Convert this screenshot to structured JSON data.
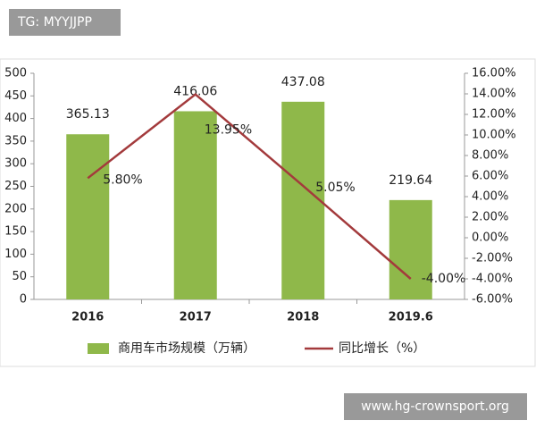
{
  "chart_data": {
    "type": "bar-line",
    "categories": [
      "2016",
      "2017",
      "2018",
      "2019.6"
    ],
    "series": [
      {
        "name": "商用车市场规模（万辆）",
        "type": "bar",
        "color": "#8fb84a",
        "values": [
          365.13,
          416.06,
          437.08,
          219.64
        ]
      },
      {
        "name": "同比增长（%）",
        "type": "line",
        "axis": "y2",
        "color": "#a33a3c",
        "values": [
          5.8,
          13.95,
          5.05,
          -4.0
        ],
        "value_labels": [
          "5.80%",
          "13.95%",
          "5.05%",
          "-4.00%"
        ]
      }
    ],
    "ylim": [
      0,
      500
    ],
    "yticks": [
      0,
      50,
      100,
      150,
      200,
      250,
      300,
      350,
      400,
      450,
      500
    ],
    "y2lim": [
      -6,
      16
    ],
    "y2ticks": [
      {
        "value": -6,
        "label": "-6.00%"
      },
      {
        "value": -4,
        "label": "-4.00%"
      },
      {
        "value": -2,
        "label": "-2.00%"
      },
      {
        "value": 0,
        "label": "0.00%"
      },
      {
        "value": 2,
        "label": "2.00%"
      },
      {
        "value": 4,
        "label": "4.00%"
      },
      {
        "value": 6,
        "label": "6.00%"
      },
      {
        "value": 8,
        "label": "8.00%"
      },
      {
        "value": 10,
        "label": "10.00%"
      },
      {
        "value": 12,
        "label": "12.00%"
      },
      {
        "value": 14,
        "label": "14.00%"
      },
      {
        "value": 16,
        "label": "16.00%"
      }
    ],
    "grid": false,
    "legend": "bottom"
  },
  "watermarks": [
    "TG: MYYJJPP",
    "www.hg-crownsport.org"
  ]
}
